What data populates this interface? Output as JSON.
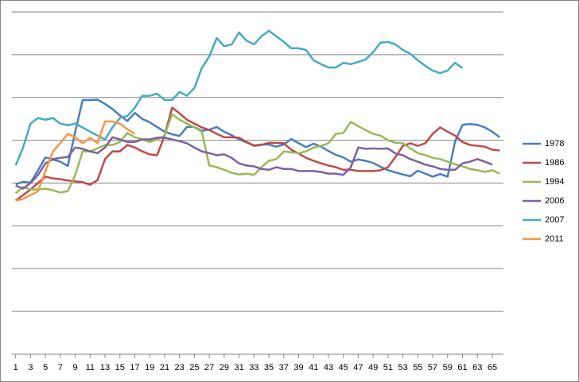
{
  "chart_data": {
    "type": "line",
    "x": [
      1,
      2,
      3,
      4,
      5,
      6,
      7,
      8,
      9,
      10,
      11,
      12,
      13,
      14,
      15,
      16,
      17,
      18,
      19,
      20,
      21,
      22,
      23,
      24,
      25,
      26,
      27,
      28,
      29,
      30,
      31,
      32,
      33,
      34,
      35,
      36,
      37,
      38,
      39,
      40,
      41,
      42,
      43,
      44,
      45,
      46,
      47,
      48,
      49,
      50,
      51,
      52,
      53,
      54,
      55,
      56,
      57,
      58,
      59,
      60,
      61,
      62,
      63,
      64,
      65,
      66
    ],
    "xlim": [
      0.5,
      66.5
    ],
    "xticks": [
      1,
      3,
      5,
      7,
      9,
      11,
      13,
      15,
      17,
      19,
      21,
      23,
      25,
      27,
      29,
      31,
      33,
      35,
      37,
      39,
      41,
      43,
      45,
      47,
      49,
      51,
      53,
      55,
      57,
      59,
      61,
      63,
      65
    ],
    "ylim": [
      0,
      8
    ],
    "ygrid": [
      1,
      2,
      3,
      4,
      5,
      6,
      7,
      8
    ],
    "grid": true,
    "legend": "right",
    "series": [
      {
        "name": "1978",
        "color": "#4a7ebb",
        "values": [
          3.97,
          4.03,
          4.01,
          4.3,
          4.6,
          4.55,
          4.5,
          4.4,
          5.2,
          5.94,
          5.94,
          5.95,
          5.85,
          5.73,
          5.58,
          5.45,
          5.64,
          5.5,
          5.42,
          5.31,
          5.2,
          5.14,
          5.1,
          5.31,
          5.31,
          5.22,
          5.25,
          5.31,
          5.2,
          5.12,
          5.02,
          4.95,
          4.88,
          4.9,
          4.9,
          4.85,
          4.9,
          5.03,
          4.93,
          4.84,
          4.92,
          4.85,
          4.75,
          4.66,
          4.6,
          4.5,
          4.55,
          4.52,
          4.47,
          4.38,
          4.3,
          4.25,
          4.2,
          4.16,
          4.29,
          4.22,
          4.15,
          4.21,
          4.15,
          4.97,
          5.36,
          5.38,
          5.36,
          5.3,
          5.2,
          5.07
        ]
      },
      {
        "name": "1986",
        "color": "#be4b48",
        "values": [
          3.59,
          3.72,
          3.85,
          4.0,
          4.15,
          4.11,
          4.09,
          4.06,
          4.04,
          4.02,
          3.96,
          4.07,
          4.56,
          4.74,
          4.74,
          4.89,
          4.83,
          4.74,
          4.67,
          4.65,
          5.11,
          5.76,
          5.63,
          5.48,
          5.39,
          5.3,
          5.24,
          5.15,
          5.07,
          5.07,
          5.06,
          4.96,
          4.87,
          4.89,
          4.94,
          4.94,
          4.93,
          4.78,
          4.69,
          4.59,
          4.52,
          4.46,
          4.41,
          4.37,
          4.31,
          4.31,
          4.28,
          4.28,
          4.28,
          4.3,
          4.37,
          4.61,
          4.87,
          4.93,
          4.87,
          4.93,
          5.15,
          5.3,
          5.2,
          5.11,
          4.96,
          4.89,
          4.87,
          4.85,
          4.78,
          4.76
        ]
      },
      {
        "name": "1994",
        "color": "#98b954",
        "values": [
          3.76,
          3.91,
          3.85,
          3.85,
          3.87,
          3.83,
          3.78,
          3.81,
          4.19,
          4.74,
          4.74,
          4.81,
          4.89,
          4.89,
          4.96,
          5.17,
          5.07,
          5.02,
          4.96,
          5.02,
          5.11,
          5.61,
          5.48,
          5.39,
          5.3,
          5.2,
          4.41,
          4.37,
          4.31,
          4.24,
          4.2,
          4.22,
          4.19,
          4.37,
          4.52,
          4.56,
          4.74,
          4.72,
          4.7,
          4.74,
          4.83,
          4.87,
          4.93,
          5.15,
          5.17,
          5.43,
          5.33,
          5.24,
          5.15,
          5.11,
          5.0,
          4.94,
          4.93,
          4.81,
          4.7,
          4.65,
          4.59,
          4.56,
          4.5,
          4.44,
          4.39,
          4.33,
          4.3,
          4.26,
          4.3,
          4.22
        ]
      },
      {
        "name": "2006",
        "color": "#7d60a0",
        "values": [
          3.94,
          3.87,
          4.0,
          4.19,
          4.46,
          4.56,
          4.59,
          4.61,
          4.83,
          4.8,
          4.74,
          4.7,
          4.83,
          5.07,
          5.02,
          4.96,
          4.96,
          5.02,
          5.02,
          5.06,
          5.06,
          5.02,
          4.98,
          4.93,
          4.83,
          4.74,
          4.7,
          4.65,
          4.67,
          4.59,
          4.46,
          4.41,
          4.39,
          4.33,
          4.31,
          4.37,
          4.33,
          4.33,
          4.28,
          4.28,
          4.28,
          4.26,
          4.22,
          4.22,
          4.19,
          4.37,
          4.83,
          4.8,
          4.81,
          4.8,
          4.81,
          4.69,
          4.65,
          4.56,
          4.5,
          4.43,
          4.39,
          4.33,
          4.31,
          4.31,
          4.46,
          4.5,
          4.56,
          4.5,
          4.43,
          null
        ]
      },
      {
        "name": "2007",
        "color": "#46aac5",
        "values": [
          4.41,
          4.83,
          5.39,
          5.52,
          5.48,
          5.52,
          5.39,
          5.35,
          5.39,
          5.3,
          5.2,
          5.11,
          5.02,
          5.3,
          5.52,
          5.57,
          5.76,
          6.04,
          6.04,
          6.09,
          5.94,
          5.94,
          6.13,
          6.04,
          6.22,
          6.69,
          6.96,
          7.39,
          7.2,
          7.24,
          7.52,
          7.33,
          7.24,
          7.43,
          7.56,
          7.43,
          7.3,
          7.15,
          7.15,
          7.11,
          6.87,
          6.78,
          6.7,
          6.7,
          6.81,
          6.78,
          6.83,
          6.89,
          7.06,
          7.28,
          7.3,
          7.24,
          7.11,
          7.02,
          6.87,
          6.74,
          6.63,
          6.57,
          6.63,
          6.81,
          6.69,
          null,
          null,
          null,
          null,
          null
        ]
      },
      {
        "name": "2011",
        "color": "#f79646",
        "values": [
          3.59,
          3.63,
          3.72,
          3.81,
          4.28,
          4.74,
          4.93,
          5.15,
          5.07,
          4.93,
          5.06,
          4.93,
          5.44,
          5.44,
          5.39,
          5.26,
          5.15,
          null,
          null,
          null,
          null,
          null,
          null,
          null,
          null,
          null,
          null,
          null,
          null,
          null,
          null,
          null,
          null,
          null,
          null,
          null,
          null,
          null,
          null,
          null,
          null,
          null,
          null,
          null,
          null,
          null,
          null,
          null,
          null,
          null,
          null,
          null,
          null,
          null,
          null,
          null,
          null,
          null,
          null,
          null,
          null,
          null,
          null,
          null,
          null,
          null
        ]
      }
    ]
  }
}
